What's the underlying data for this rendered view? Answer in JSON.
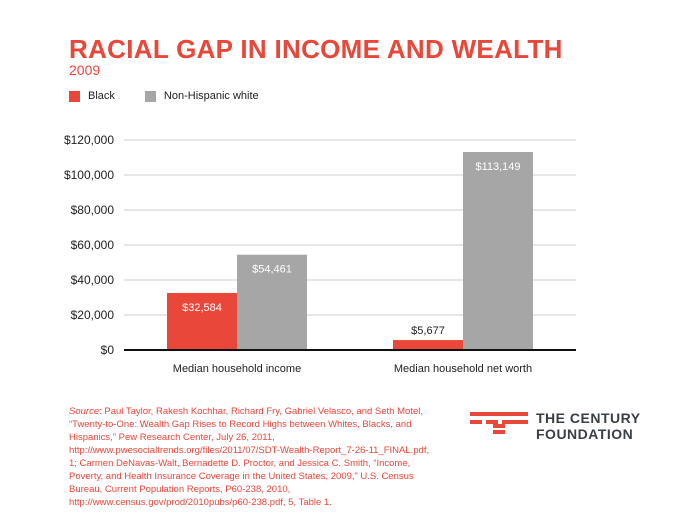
{
  "header": {
    "title": "RACIAL GAP IN INCOME AND WEALTH",
    "subtitle": "2009"
  },
  "colors": {
    "accent": "#e8473a",
    "black_series": "#e8473a",
    "white_series": "#a6a6a6"
  },
  "chart_data": {
    "type": "bar",
    "title": "RACIAL GAP IN INCOME AND WEALTH",
    "subtitle": "2009",
    "categories": [
      "Median household income",
      "Median household net worth"
    ],
    "series": [
      {
        "name": "Black",
        "values": [
          32584,
          5677
        ],
        "labels": [
          "$32,584",
          "$5,677"
        ],
        "color": "#e8473a"
      },
      {
        "name": "Non-Hispanic white",
        "values": [
          54461,
          113149
        ],
        "labels": [
          "$54,461",
          "$113,149"
        ],
        "color": "#a6a6a6"
      }
    ],
    "yticks": [
      0,
      20000,
      40000,
      60000,
      80000,
      100000,
      120000
    ],
    "ytick_labels": [
      "$0",
      "$20,000",
      "$40,000",
      "$60,000",
      "$80,000",
      "$100,000",
      "$120,000"
    ],
    "ylim": [
      0,
      120000
    ],
    "xlabel": "",
    "ylabel": "",
    "grid": true,
    "legend": "top-left"
  },
  "source": {
    "label": "Source",
    "text": ": Paul Taylor, Rakesh Kochhar, Richard Fry, Gabriel Velasco, and Seth Motel, “Twenty-to-One: Wealth Gap Rises to Record Highs between Whites, Blacks, and Hispanics,” Pew Research Center, July 26, 2011, http://www.pwesocialtrends.org/files/2011/07/SDT-Wealth-Report_7-26-11_FINAL.pdf, 1; Carmen DeNavas-Walt, Bernadette D. Proctor, and Jessica C. Smith, “Income, Poverty, and Health Insurance Coverage in the United States, 2009,” U.S. Census Bureau, Current Population Reports, P60-238, 2010, http://www.census.gov/prod/2010pubs/p60-238.pdf, 5, Table 1."
  },
  "logo": {
    "line1": "THE CENTURY",
    "line2": "FOUNDATION"
  }
}
